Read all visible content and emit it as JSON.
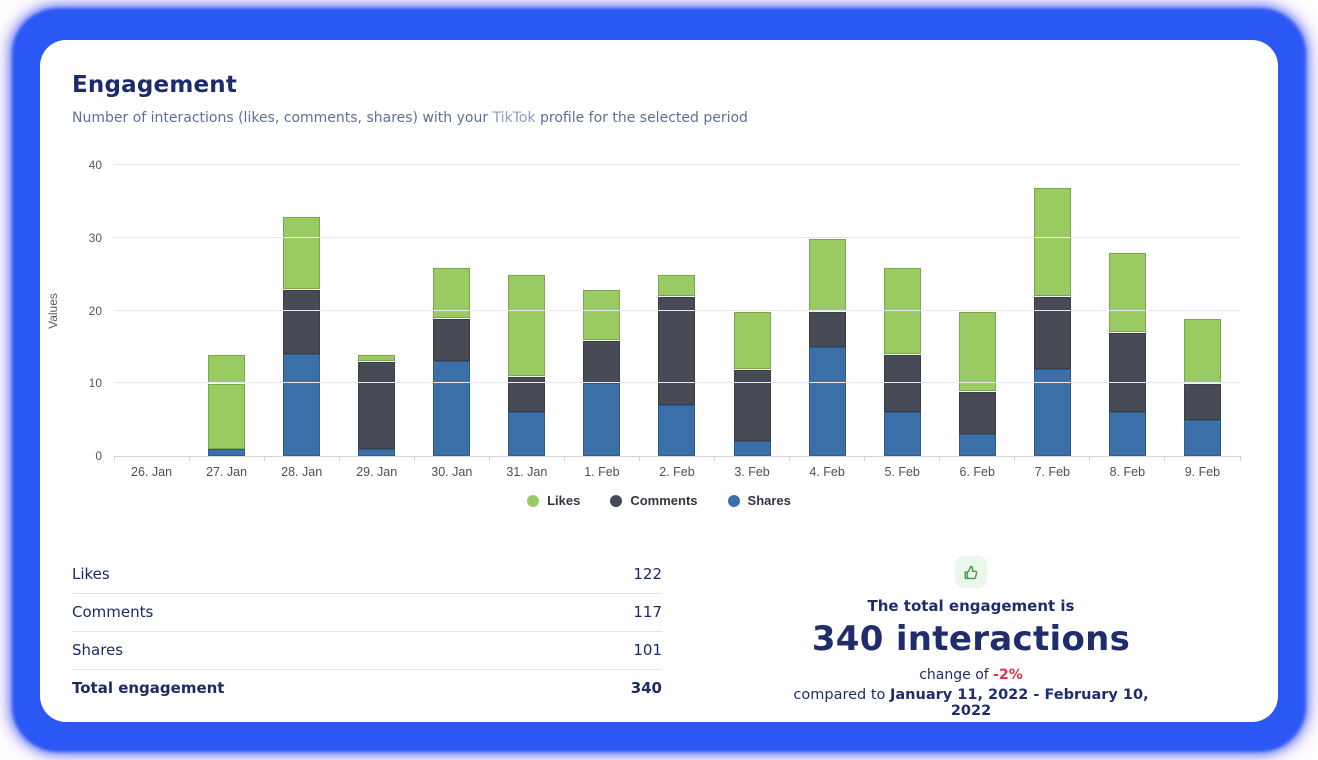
{
  "header": {
    "title": "Engagement",
    "subtitle_prefix": "Number of interactions (likes, comments, shares) with your ",
    "subtitle_link": "TikTok",
    "subtitle_suffix": " profile for the selected period"
  },
  "chart_data": {
    "type": "bar",
    "stacked": true,
    "title": "",
    "xlabel": "",
    "ylabel": "Values",
    "ylim": [
      0,
      40
    ],
    "yticks": [
      0,
      10,
      20,
      30,
      40
    ],
    "grid": true,
    "legend_position": "bottom-center",
    "categories": [
      "26. Jan",
      "27. Jan",
      "28. Jan",
      "29. Jan",
      "30. Jan",
      "31. Jan",
      "1. Feb",
      "2. Feb",
      "3. Feb",
      "4. Feb",
      "5. Feb",
      "6. Feb",
      "7. Feb",
      "8. Feb",
      "9. Feb"
    ],
    "series": [
      {
        "name": "Shares",
        "color": "#3a70a7",
        "values": [
          0,
          1,
          14,
          1,
          13,
          6,
          10,
          7,
          2,
          15,
          6,
          3,
          12,
          6,
          5
        ]
      },
      {
        "name": "Comments",
        "color": "#474b55",
        "values": [
          0,
          9,
          9,
          12,
          6,
          5,
          6,
          15,
          10,
          5,
          8,
          6,
          10,
          11,
          5
        ]
      },
      {
        "name": "Likes",
        "color": "#9acb63",
        "values": [
          0,
          4,
          10,
          1,
          7,
          14,
          7,
          3,
          8,
          10,
          12,
          11,
          15,
          11,
          9
        ]
      }
    ],
    "stack_order_bottom_to_top": [
      "Shares",
      "Comments",
      "Likes"
    ],
    "legend_order": [
      "Likes",
      "Comments",
      "Shares"
    ],
    "segment_color_overrides": [
      {
        "category": "27. Jan",
        "series": "Comments",
        "color": "#9acb63"
      }
    ]
  },
  "summary_table": {
    "rows": [
      {
        "label": "Likes",
        "value": 122
      },
      {
        "label": "Comments",
        "value": 117
      },
      {
        "label": "Shares",
        "value": 101
      }
    ],
    "total_row": {
      "label": "Total engagement",
      "value": 340
    }
  },
  "total_panel": {
    "icon": "thumbs-up-icon",
    "heading": "The total engagement is",
    "headline": "340 interactions",
    "change_prefix": "change of ",
    "change_value": "-2%",
    "compared_prefix": "compared to ",
    "compared_range": "January 11, 2022 - February 10, 2022"
  },
  "colors": {
    "frame_blue": "#2b57f4",
    "brand_navy": "#1f2d6d",
    "negative_red": "#e62e4d",
    "likes_green": "#9acb63",
    "comments_dark": "#474b55",
    "shares_blue": "#3a70a7"
  }
}
